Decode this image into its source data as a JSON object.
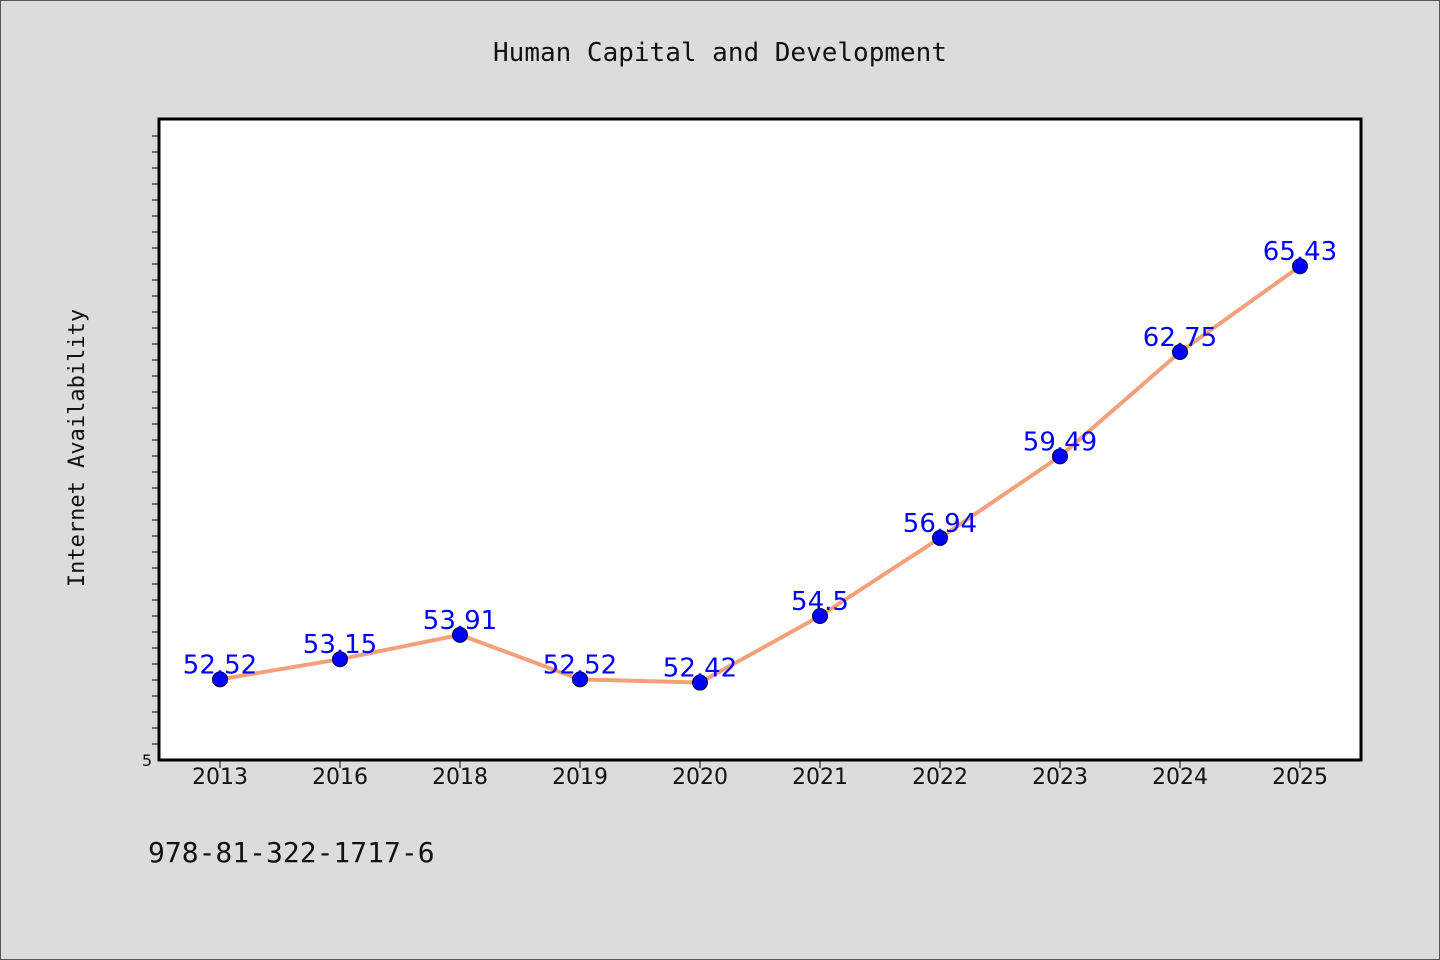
{
  "chart_data": {
    "type": "line",
    "title": "Human Capital and Development",
    "ylabel": "Internet Availability",
    "xlabel": "",
    "categories": [
      "2013",
      "2016",
      "2018",
      "2019",
      "2020",
      "2021",
      "2022",
      "2023",
      "2024",
      "2025"
    ],
    "series": [
      {
        "values": [
          52.52,
          53.15,
          53.91,
          52.52,
          52.42,
          54.5,
          56.94,
          59.49,
          62.75,
          65.43
        ],
        "labels": [
          "52.52",
          "53.15",
          "53.91",
          "52.52",
          "52.42",
          "54.5",
          "56.94",
          "59.49",
          "62.75",
          "65.43"
        ]
      }
    ],
    "ylim": [
      50,
      70
    ],
    "yticks": [
      "5"
    ],
    "grid": false,
    "line_color": "#f4a07a",
    "marker_color": "#0000ff",
    "label_color": "#0000ff"
  },
  "footer_text": "978-81-322-1717-6",
  "colors": {
    "background": "#dcdcdc",
    "plot_background": "#ffffff",
    "axis": "#000000"
  }
}
